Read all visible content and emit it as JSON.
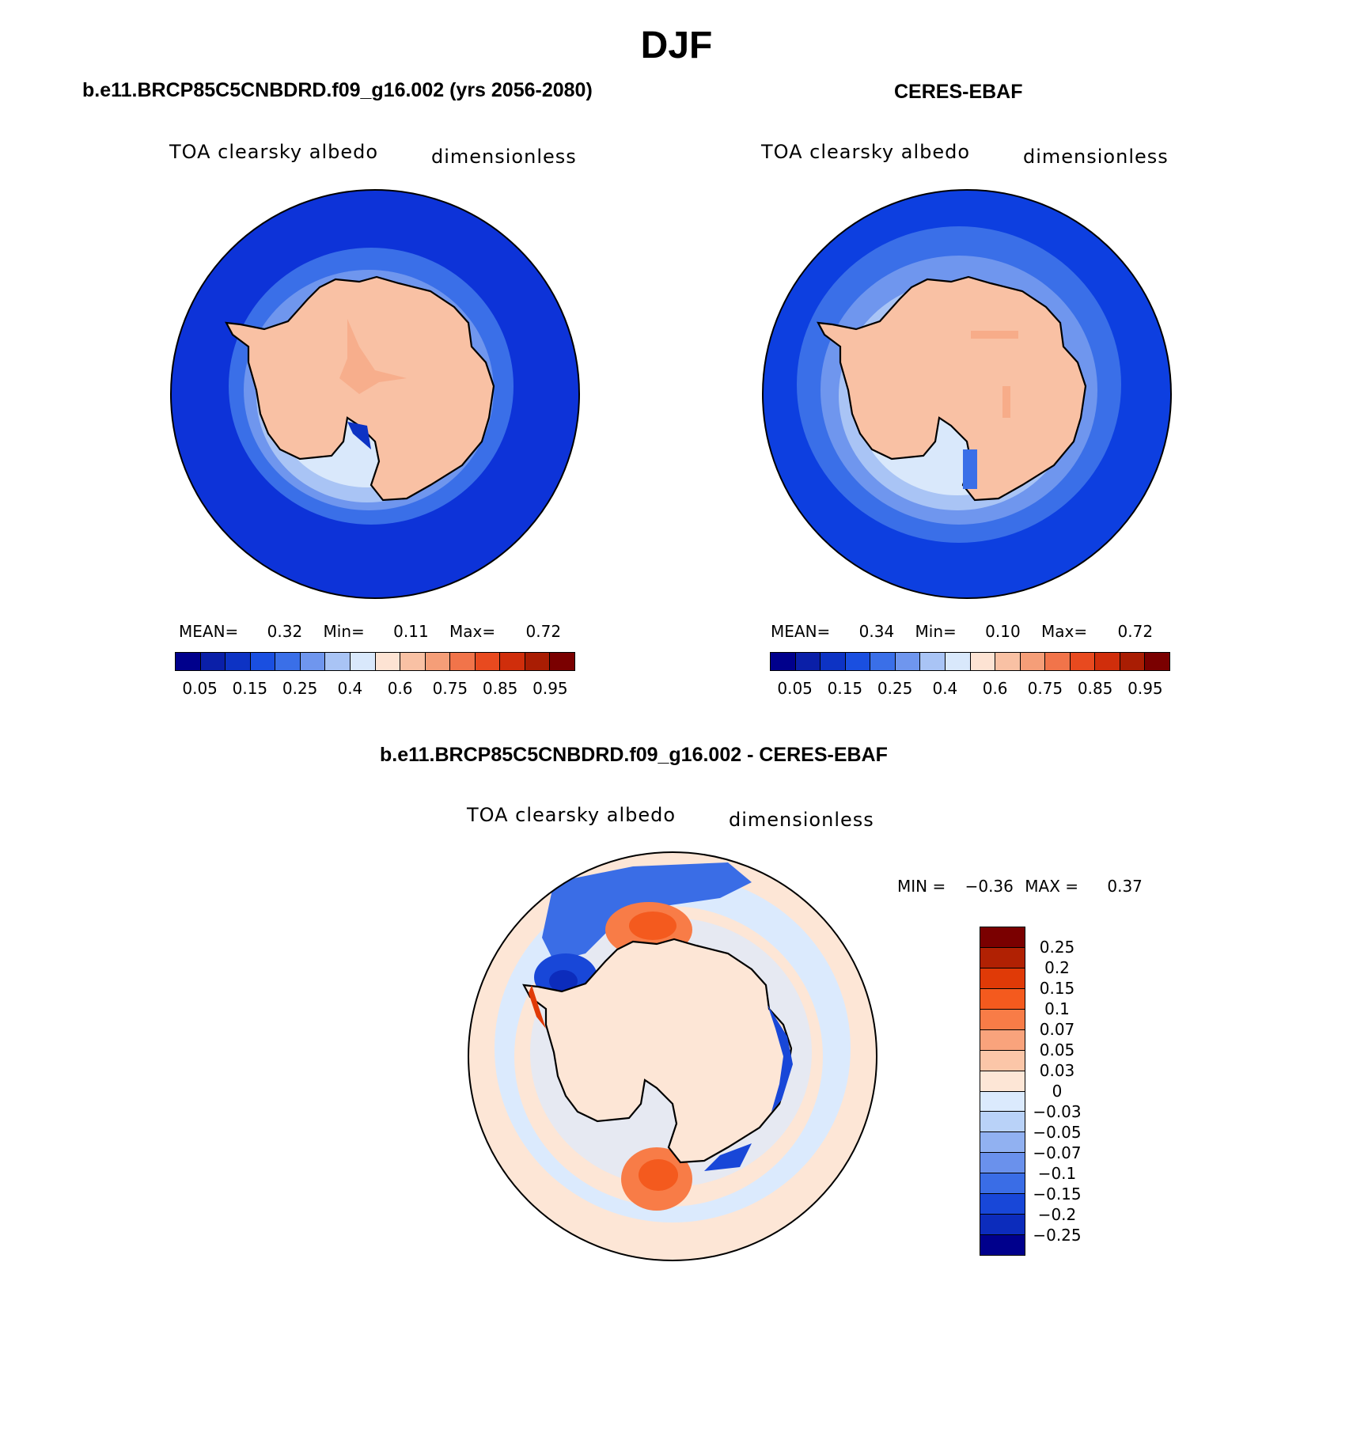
{
  "figure": {
    "season": "DJF"
  },
  "panels": [
    {
      "id": "model",
      "title": "b.e11.BRCP85C5CNBDRD.f09_g16.002 (yrs 2056-2080)",
      "field_label": "TOA clearsky albedo",
      "units": "dimensionless",
      "stats": {
        "mean_label": "MEAN=",
        "mean": "0.32",
        "min_label": "Min=",
        "min": "0.11",
        "max_label": "Max=",
        "max": "0.72"
      }
    },
    {
      "id": "obs",
      "title": "CERES-EBAF",
      "field_label": "TOA clearsky albedo",
      "units": "dimensionless",
      "stats": {
        "mean_label": "MEAN=",
        "mean": "0.34",
        "min_label": "Min=",
        "min": "0.10",
        "max_label": "Max=",
        "max": "0.72"
      }
    },
    {
      "id": "diff",
      "title": "b.e11.BRCP85C5CNBDRD.f09_g16.002 - CERES-EBAF",
      "field_label": "TOA clearsky albedo",
      "units": "dimensionless",
      "stats": {
        "min_label": "MIN =",
        "min": "−0.36",
        "max_label": "MAX =",
        "max": "0.37"
      }
    }
  ],
  "colorbars": {
    "albedo": {
      "colors": [
        "#00008c",
        "#0a1fa8",
        "#0d33c4",
        "#1a4fe0",
        "#3a6fe8",
        "#6f96ee",
        "#a9c4f5",
        "#d9e8fb",
        "#fde3d3",
        "#f9c1a4",
        "#f59e78",
        "#f1744a",
        "#e84a1f",
        "#d02e0b",
        "#a91d03",
        "#7a0000"
      ],
      "tick_labels": [
        "0.05",
        "0.15",
        "0.25",
        "0.4",
        "0.6",
        "0.75",
        "0.85",
        "0.95"
      ]
    },
    "difference": {
      "colors": [
        "#7a0000",
        "#b12103",
        "#e03a07",
        "#f45a1e",
        "#f87c47",
        "#f9a37c",
        "#fbc6a8",
        "#fde6d6",
        "#dbeafd",
        "#b9d2f8",
        "#91b1f1",
        "#6a91ec",
        "#3a6de6",
        "#1847d8",
        "#0c2cbc",
        "#00008c"
      ],
      "tick_labels": [
        "0.25",
        "0.2",
        "0.15",
        "0.1",
        "0.07",
        "0.05",
        "0.03",
        "0",
        "−0.03",
        "−0.05",
        "−0.07",
        "−0.1",
        "−0.15",
        "−0.2",
        "−0.25"
      ]
    }
  },
  "map_colors": {
    "ocean_model": "#0d33d8",
    "ocean_obs": "#0d3fe0",
    "land": "#f9c1a4",
    "diff_background": "#fde6d6"
  }
}
